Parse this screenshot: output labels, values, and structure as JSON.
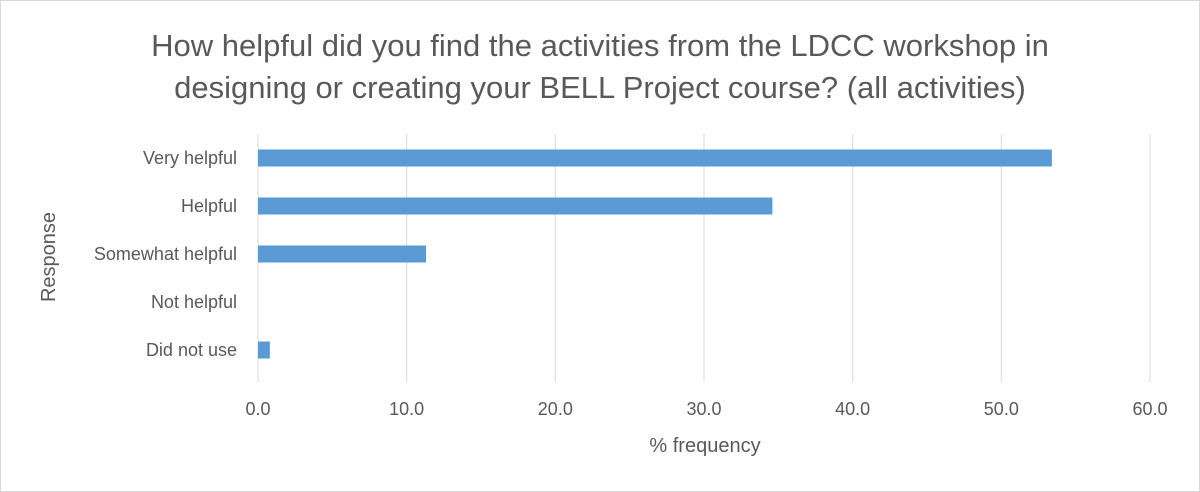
{
  "chart_data": {
    "type": "bar",
    "orientation": "horizontal",
    "title_lines": [
      "How helpful did you find the activities from the LDCC workshop in",
      "designing or creating your BELL Project course? (all activities)"
    ],
    "categories": [
      "Very helpful",
      "Helpful",
      "Somewhat helpful",
      "Not helpful",
      "Did not use"
    ],
    "values": [
      53.4,
      34.6,
      11.3,
      0.0,
      0.8
    ],
    "xlabel": "% frequency",
    "ylabel": "Response",
    "xlim": [
      0,
      60
    ],
    "xticks": [
      "0.0",
      "10.0",
      "20.0",
      "30.0",
      "40.0",
      "50.0",
      "60.0"
    ],
    "grid": true,
    "legend": "none",
    "bar_color": "#5b9bd5"
  }
}
